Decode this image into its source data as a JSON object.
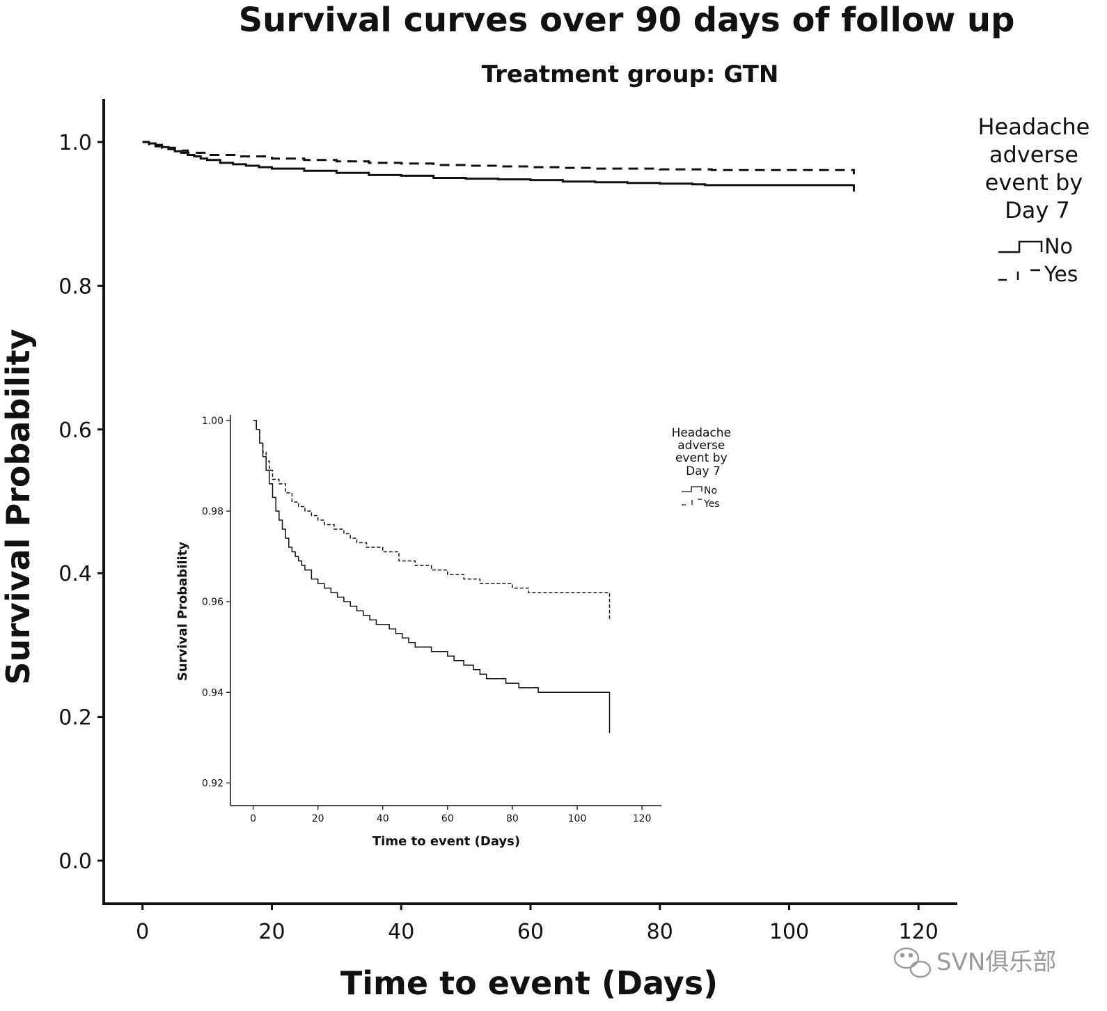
{
  "chart_data": [
    {
      "type": "line",
      "step": true,
      "title": "Survival curves over 90 days of follow up",
      "subtitle": "Treatment group: GTN",
      "xlabel": "Time to event (Days)",
      "ylabel": "Survival Probability",
      "xlim": [
        -6,
        126
      ],
      "ylim": [
        -0.06,
        1.06
      ],
      "xticks": [
        0,
        20,
        40,
        60,
        80,
        100,
        120
      ],
      "xtick_labels": [
        "0",
        "20",
        "40",
        "60",
        "80",
        "100",
        "120"
      ],
      "yticks": [
        0.0,
        0.2,
        0.4,
        0.6,
        0.8,
        1.0
      ],
      "ytick_labels": [
        "0.0",
        "0.2",
        "0.4",
        "0.6",
        "0.8",
        "1.0"
      ],
      "legend": {
        "title": [
          "Headache",
          "adverse",
          "event by",
          "Day 7"
        ],
        "position": "right"
      },
      "series": [
        {
          "name": "No",
          "style": "solid",
          "x": [
            0,
            1,
            2,
            3,
            4,
            5,
            6,
            7,
            8,
            9,
            10,
            12,
            14,
            16,
            18,
            20,
            25,
            30,
            35,
            40,
            45,
            50,
            55,
            60,
            65,
            70,
            75,
            80,
            85,
            87,
            110,
            110
          ],
          "y": [
            1.0,
            0.998,
            0.996,
            0.993,
            0.99,
            0.987,
            0.985,
            0.982,
            0.98,
            0.977,
            0.975,
            0.971,
            0.969,
            0.967,
            0.965,
            0.963,
            0.96,
            0.957,
            0.954,
            0.953,
            0.95,
            0.949,
            0.948,
            0.947,
            0.945,
            0.944,
            0.943,
            0.942,
            0.941,
            0.94,
            0.94,
            0.931
          ]
        },
        {
          "name": "Yes",
          "style": "dashed",
          "x": [
            0,
            1,
            2,
            3,
            5,
            7,
            10,
            15,
            20,
            25,
            30,
            35,
            40,
            45,
            50,
            55,
            60,
            65,
            70,
            75,
            80,
            88,
            100,
            110,
            110
          ],
          "y": [
            1.0,
            0.997,
            0.994,
            0.992,
            0.988,
            0.985,
            0.982,
            0.98,
            0.977,
            0.975,
            0.973,
            0.971,
            0.97,
            0.968,
            0.967,
            0.966,
            0.965,
            0.964,
            0.963,
            0.963,
            0.962,
            0.961,
            0.961,
            0.961,
            0.955
          ]
        }
      ]
    },
    {
      "type": "line",
      "step": true,
      "xlabel": "Time to event (Days)",
      "ylabel": "Survival Probability",
      "xlim": [
        -7,
        126
      ],
      "ylim": [
        0.915,
        1.0012
      ],
      "xticks": [
        0,
        20,
        40,
        60,
        80,
        100,
        120
      ],
      "xtick_labels": [
        "0",
        "20",
        "40",
        "60",
        "80",
        "100",
        "120"
      ],
      "yticks": [
        0.92,
        0.94,
        0.96,
        0.98,
        1.0
      ],
      "ytick_labels": [
        "0.92",
        "0.94",
        "0.96",
        "0.98",
        "1.00"
      ],
      "legend": {
        "title": [
          "Headache",
          "adverse",
          "event by",
          "Day 7"
        ],
        "position": "right"
      },
      "series": [
        {
          "name": "No",
          "style": "solid",
          "x": [
            0,
            1,
            2,
            3,
            4,
            5,
            6,
            7,
            8,
            9,
            10,
            11,
            12,
            13,
            14,
            15,
            16,
            18,
            20,
            22,
            24,
            26,
            28,
            30,
            32,
            34,
            36,
            38,
            40,
            42,
            44,
            46,
            48,
            50,
            52,
            55,
            58,
            60,
            62,
            65,
            68,
            70,
            72,
            75,
            78,
            82,
            86,
            88,
            100,
            110,
            110
          ],
          "y": [
            1.0,
            0.998,
            0.995,
            0.992,
            0.989,
            0.986,
            0.983,
            0.98,
            0.978,
            0.976,
            0.974,
            0.972,
            0.971,
            0.97,
            0.969,
            0.968,
            0.967,
            0.965,
            0.964,
            0.963,
            0.962,
            0.961,
            0.96,
            0.959,
            0.958,
            0.957,
            0.956,
            0.955,
            0.955,
            0.954,
            0.953,
            0.952,
            0.951,
            0.95,
            0.95,
            0.949,
            0.949,
            0.948,
            0.947,
            0.946,
            0.945,
            0.944,
            0.943,
            0.943,
            0.942,
            0.941,
            0.941,
            0.94,
            0.94,
            0.94,
            0.931
          ]
        },
        {
          "name": "Yes",
          "style": "dashed",
          "x": [
            0,
            1,
            2,
            3,
            4,
            5,
            6,
            8,
            10,
            12,
            14,
            16,
            18,
            20,
            22,
            25,
            28,
            30,
            32,
            35,
            40,
            45,
            50,
            55,
            60,
            65,
            70,
            75,
            80,
            85,
            88,
            95,
            100,
            110,
            110
          ],
          "y": [
            1.0,
            0.998,
            0.995,
            0.993,
            0.991,
            0.989,
            0.987,
            0.986,
            0.984,
            0.982,
            0.981,
            0.98,
            0.979,
            0.978,
            0.977,
            0.976,
            0.975,
            0.974,
            0.973,
            0.972,
            0.971,
            0.969,
            0.968,
            0.967,
            0.966,
            0.965,
            0.964,
            0.964,
            0.963,
            0.962,
            0.962,
            0.962,
            0.962,
            0.962,
            0.956
          ]
        }
      ]
    }
  ],
  "watermark": {
    "text": "SVN俱乐部",
    "icon": "wechat-icon"
  }
}
